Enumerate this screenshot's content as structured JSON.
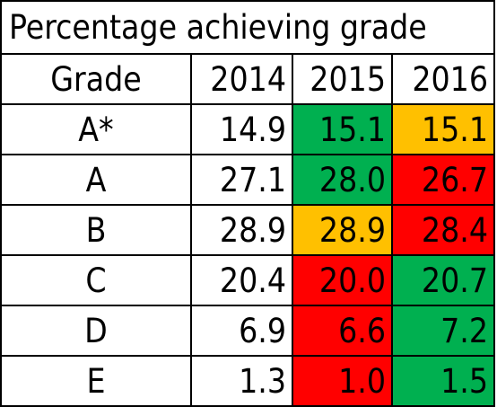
{
  "title": "Percentage achieving grade",
  "colors": {
    "green": "#00b050",
    "amber": "#ffc000",
    "red": "#ff0000",
    "none": "#ffffff"
  },
  "chart_data": {
    "type": "table",
    "title": "Percentage achieving grade",
    "columns": [
      "Grade",
      "2014",
      "2015",
      "2016"
    ],
    "rows": [
      {
        "grade": "A*",
        "values": [
          "14.9",
          "15.1",
          "15.1"
        ],
        "highlight": [
          "none",
          "green",
          "amber"
        ]
      },
      {
        "grade": "A",
        "values": [
          "27.1",
          "28.0",
          "26.7"
        ],
        "highlight": [
          "none",
          "green",
          "red"
        ]
      },
      {
        "grade": "B",
        "values": [
          "28.9",
          "28.9",
          "28.4"
        ],
        "highlight": [
          "none",
          "amber",
          "red"
        ]
      },
      {
        "grade": "C",
        "values": [
          "20.4",
          "20.0",
          "20.7"
        ],
        "highlight": [
          "none",
          "red",
          "green"
        ]
      },
      {
        "grade": "D",
        "values": [
          "6.9",
          "6.6",
          "7.2"
        ],
        "highlight": [
          "none",
          "red",
          "green"
        ]
      },
      {
        "grade": "E",
        "values": [
          "1.3",
          "1.0",
          "1.5"
        ],
        "highlight": [
          "none",
          "red",
          "green"
        ]
      }
    ]
  }
}
